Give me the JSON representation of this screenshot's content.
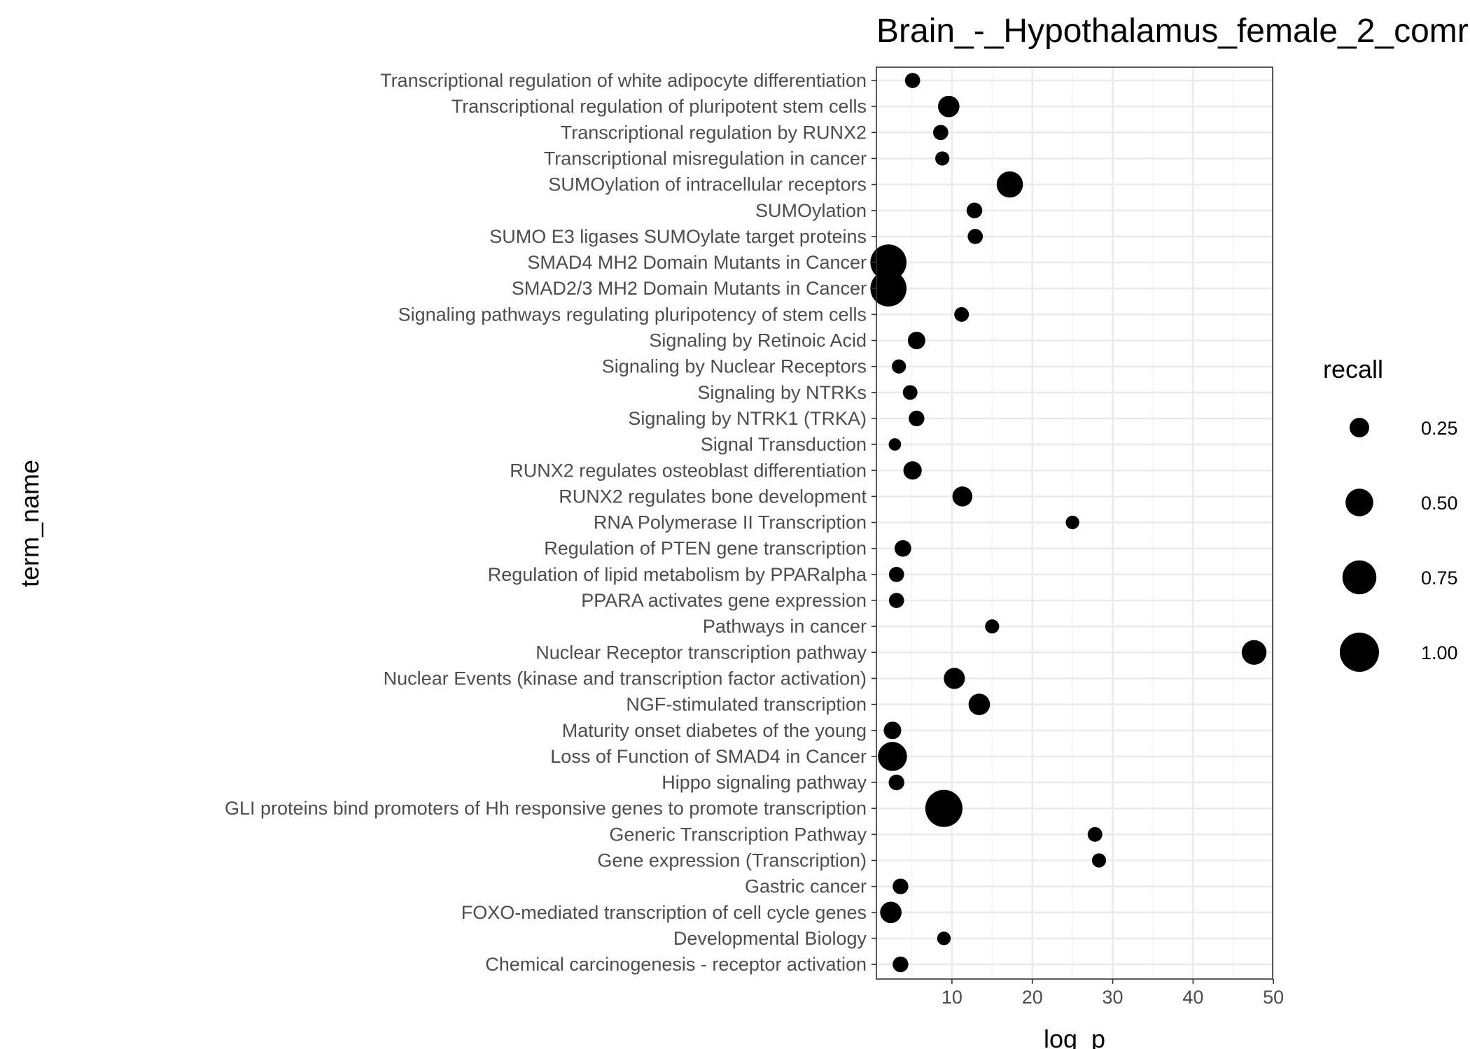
{
  "chart_data": {
    "type": "scatter",
    "title": "Brain_-_Hypothalamus_female_2_comr",
    "xlabel": "log_p",
    "ylabel": "term_name",
    "xlim": [
      0,
      50
    ],
    "xticks": [
      10,
      20,
      30,
      40,
      50
    ],
    "grid": true,
    "size_variable": "recall",
    "legend": {
      "title": "recall",
      "placement": "right",
      "entries": [
        {
          "label": "0.25",
          "value": 0.25
        },
        {
          "label": "0.50",
          "value": 0.5
        },
        {
          "label": "0.75",
          "value": 0.75
        },
        {
          "label": "1.00",
          "value": 1.0
        }
      ]
    },
    "points": [
      {
        "term": "Transcriptional regulation of white adipocyte differentiation",
        "log_p": 5.1,
        "recall": 0.15
      },
      {
        "term": "Transcriptional regulation of pluripotent stem cells",
        "log_p": 9.6,
        "recall": 0.3
      },
      {
        "term": "Transcriptional regulation by RUNX2",
        "log_p": 8.6,
        "recall": 0.15
      },
      {
        "term": "Transcriptional misregulation in cancer",
        "log_p": 8.8,
        "recall": 0.13
      },
      {
        "term": "SUMOylation of intracellular receptors",
        "log_p": 17.2,
        "recall": 0.45
      },
      {
        "term": "SUMOylation",
        "log_p": 12.8,
        "recall": 0.16
      },
      {
        "term": "SUMO E3 ligases SUMOylate target proteins",
        "log_p": 12.9,
        "recall": 0.15
      },
      {
        "term": "SMAD4 MH2 Domain Mutants in Cancer",
        "log_p": 2.1,
        "recall": 0.85
      },
      {
        "term": "SMAD2/3 MH2 Domain Mutants in Cancer",
        "log_p": 2.1,
        "recall": 0.85
      },
      {
        "term": "Signaling pathways regulating pluripotency of stem cells",
        "log_p": 11.2,
        "recall": 0.14
      },
      {
        "term": "Signaling by Retinoic Acid",
        "log_p": 5.6,
        "recall": 0.2
      },
      {
        "term": "Signaling by Nuclear Receptors",
        "log_p": 3.4,
        "recall": 0.13
      },
      {
        "term": "Signaling by NTRKs",
        "log_p": 4.8,
        "recall": 0.14
      },
      {
        "term": "Signaling by NTRK1 (TRKA)",
        "log_p": 5.6,
        "recall": 0.16
      },
      {
        "term": "Signal Transduction",
        "log_p": 2.9,
        "recall": 0.1
      },
      {
        "term": "RUNX2 regulates osteoblast differentiation",
        "log_p": 5.1,
        "recall": 0.22
      },
      {
        "term": "RUNX2 regulates bone development",
        "log_p": 11.3,
        "recall": 0.26
      },
      {
        "term": "RNA Polymerase II Transcription",
        "log_p": 25.0,
        "recall": 0.12
      },
      {
        "term": "Regulation of PTEN gene transcription",
        "log_p": 3.9,
        "recall": 0.18
      },
      {
        "term": "Regulation of lipid metabolism by PPARalpha",
        "log_p": 3.1,
        "recall": 0.15
      },
      {
        "term": "PPARA activates gene expression",
        "log_p": 3.1,
        "recall": 0.15
      },
      {
        "term": "Pathways in cancer",
        "log_p": 15.0,
        "recall": 0.13
      },
      {
        "term": "Nuclear Receptor transcription pathway",
        "log_p": 47.6,
        "recall": 0.4
      },
      {
        "term": "Nuclear Events (kinase and transcription factor activation)",
        "log_p": 10.3,
        "recall": 0.29
      },
      {
        "term": "NGF-stimulated transcription",
        "log_p": 13.4,
        "recall": 0.3
      },
      {
        "term": "Maturity onset diabetes of the young",
        "log_p": 2.6,
        "recall": 0.2
      },
      {
        "term": "Loss of Function of SMAD4 in Cancer",
        "log_p": 2.6,
        "recall": 0.55
      },
      {
        "term": "Hippo signaling pathway",
        "log_p": 3.1,
        "recall": 0.16
      },
      {
        "term": "GLI proteins bind promoters of Hh responsive genes to promote transcription",
        "log_p": 9.0,
        "recall": 0.9
      },
      {
        "term": "Generic Transcription Pathway",
        "log_p": 27.8,
        "recall": 0.14
      },
      {
        "term": "Gene expression (Transcription)",
        "log_p": 28.3,
        "recall": 0.13
      },
      {
        "term": "Gastric cancer",
        "log_p": 3.6,
        "recall": 0.16
      },
      {
        "term": "FOXO-mediated transcription of cell cycle genes",
        "log_p": 2.4,
        "recall": 0.3
      },
      {
        "term": "Developmental Biology",
        "log_p": 9.0,
        "recall": 0.12
      },
      {
        "term": "Chemical carcinogenesis - receptor activation",
        "log_p": 3.6,
        "recall": 0.16
      }
    ]
  }
}
